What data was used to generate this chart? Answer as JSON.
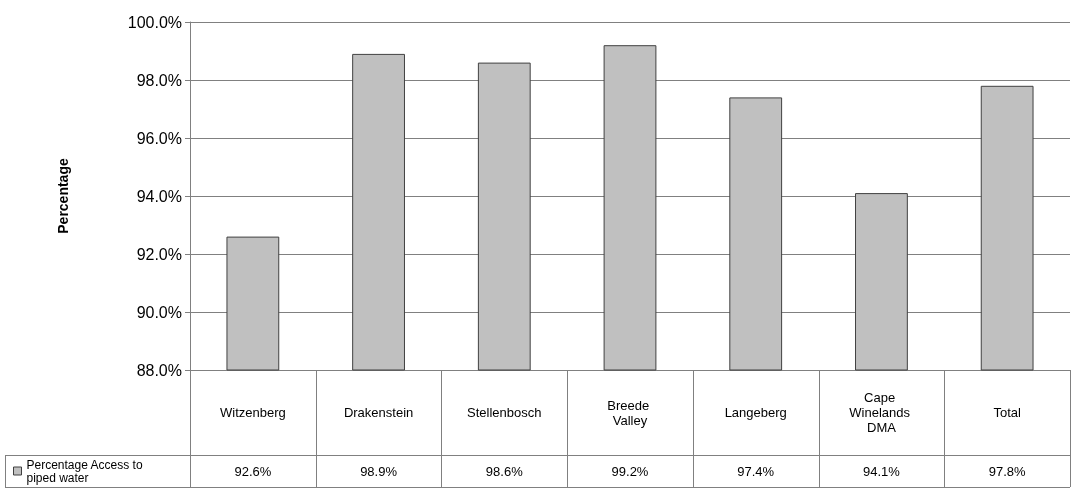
{
  "chart_data": {
    "type": "bar",
    "ylabel": "Percentage",
    "categories": [
      "Witzenberg",
      "Drakenstein",
      "Stellenbosch",
      "Breede Valley",
      "Langeberg",
      "Cape Winelands DMA",
      "Total"
    ],
    "series": [
      {
        "name": "Percentage Access to piped water",
        "color": "#c0c0c0",
        "values": [
          92.6,
          98.9,
          98.6,
          99.2,
          97.4,
          94.1,
          97.8
        ],
        "value_labels": [
          "92.6%",
          "98.9%",
          "98.6%",
          "99.2%",
          "97.4%",
          "94.1%",
          "97.8%"
        ]
      }
    ],
    "ylim": [
      88,
      100
    ],
    "yticks": [
      {
        "value": 88,
        "label": "88.0%"
      },
      {
        "value": 90,
        "label": "90.0%"
      },
      {
        "value": 92,
        "label": "92.0%"
      },
      {
        "value": 94,
        "label": "94.0%"
      },
      {
        "value": 96,
        "label": "96.0%"
      },
      {
        "value": 98,
        "label": "98.0%"
      },
      {
        "value": 100,
        "label": "100.0%"
      }
    ],
    "grid": "y",
    "legend": "bottom left"
  }
}
